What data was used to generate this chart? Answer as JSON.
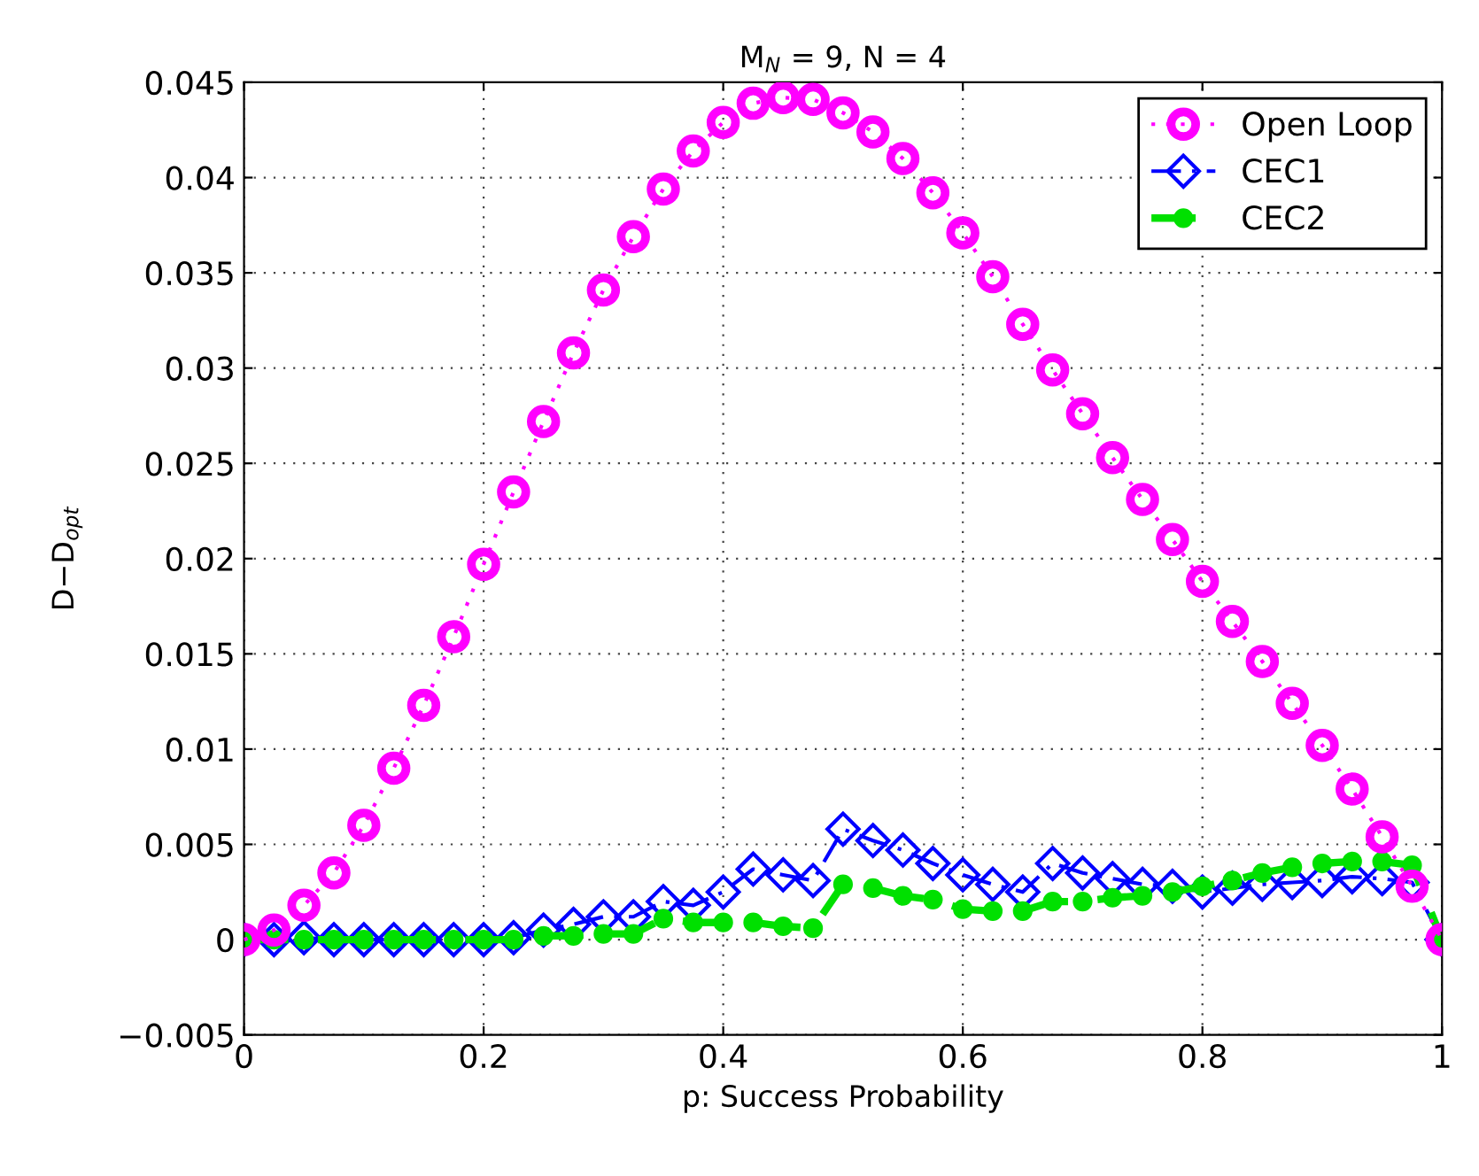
{
  "chart_data": {
    "type": "line",
    "title": "M$_{N}$ = 9, N = 4",
    "xlabel": "p: Success Probability",
    "ylabel": "D−D$_{opt}$",
    "x": [
      0,
      0.025,
      0.05,
      0.075,
      0.1,
      0.125,
      0.15,
      0.175,
      0.2,
      0.225,
      0.25,
      0.275,
      0.3,
      0.325,
      0.35,
      0.375,
      0.4,
      0.425,
      0.45,
      0.475,
      0.5,
      0.525,
      0.55,
      0.575,
      0.6,
      0.625,
      0.65,
      0.675,
      0.7,
      0.725,
      0.75,
      0.775,
      0.8,
      0.825,
      0.85,
      0.875,
      0.9,
      0.925,
      0.95,
      0.975,
      1
    ],
    "series": [
      {
        "name": "Open Loop",
        "color": "#ff00ff",
        "marker": "circle",
        "line_style": "dotted",
        "values": [
          0,
          0.0005,
          0.0018,
          0.0035,
          0.006,
          0.009,
          0.0123,
          0.0159,
          0.0197,
          0.0235,
          0.0272,
          0.0308,
          0.0341,
          0.0369,
          0.0394,
          0.0414,
          0.0429,
          0.0439,
          0.0442,
          0.0441,
          0.0434,
          0.0424,
          0.041,
          0.0392,
          0.0371,
          0.0348,
          0.0323,
          0.0299,
          0.0276,
          0.0253,
          0.0231,
          0.021,
          0.0188,
          0.0167,
          0.0146,
          0.0124,
          0.0102,
          0.0079,
          0.0054,
          0.0028,
          0
        ]
      },
      {
        "name": "CEC1",
        "color": "#0000ff",
        "marker": "diamond",
        "line_style": "dashdot",
        "values": [
          0,
          0,
          0.0001,
          0,
          0,
          0,
          0,
          0,
          0,
          0.0001,
          0.0005,
          0.0008,
          0.0012,
          0.0012,
          0.002,
          0.0018,
          0.0025,
          0.0037,
          0.0034,
          0.0031,
          0.0058,
          0.0052,
          0.0047,
          0.004,
          0.0034,
          0.0029,
          0.0025,
          0.004,
          0.0035,
          0.0032,
          0.0029,
          0.0028,
          0.0025,
          0.0027,
          0.0029,
          0.003,
          0.0031,
          0.0033,
          0.0032,
          0.003,
          0
        ]
      },
      {
        "name": "CEC2",
        "color": "#00e000",
        "marker": "filled_circle",
        "line_style": "dashed",
        "values": [
          0,
          0,
          0,
          0,
          0,
          0,
          0,
          0,
          0,
          0,
          0.0002,
          0.0002,
          0.0003,
          0.0003,
          0.0011,
          0.0009,
          0.0009,
          0.0009,
          0.0007,
          0.0006,
          0.0029,
          0.0027,
          0.0023,
          0.0021,
          0.0016,
          0.0015,
          0.0015,
          0.002,
          0.002,
          0.0022,
          0.0023,
          0.0025,
          0.0028,
          0.0031,
          0.0035,
          0.0038,
          0.004,
          0.0041,
          0.0041,
          0.0039,
          0
        ]
      }
    ],
    "xlim": [
      0,
      1
    ],
    "xticks": [
      0,
      0.2,
      0.4,
      0.6,
      0.8,
      1
    ],
    "ylim": [
      -0.005,
      0.045
    ],
    "yticks": [
      {
        "value": -0.005,
        "label": "−0.005"
      },
      0,
      0.005,
      0.01,
      0.015,
      0.02,
      0.025,
      0.03,
      0.035,
      0.04,
      0.045
    ],
    "grid": true,
    "legend": "top right"
  }
}
